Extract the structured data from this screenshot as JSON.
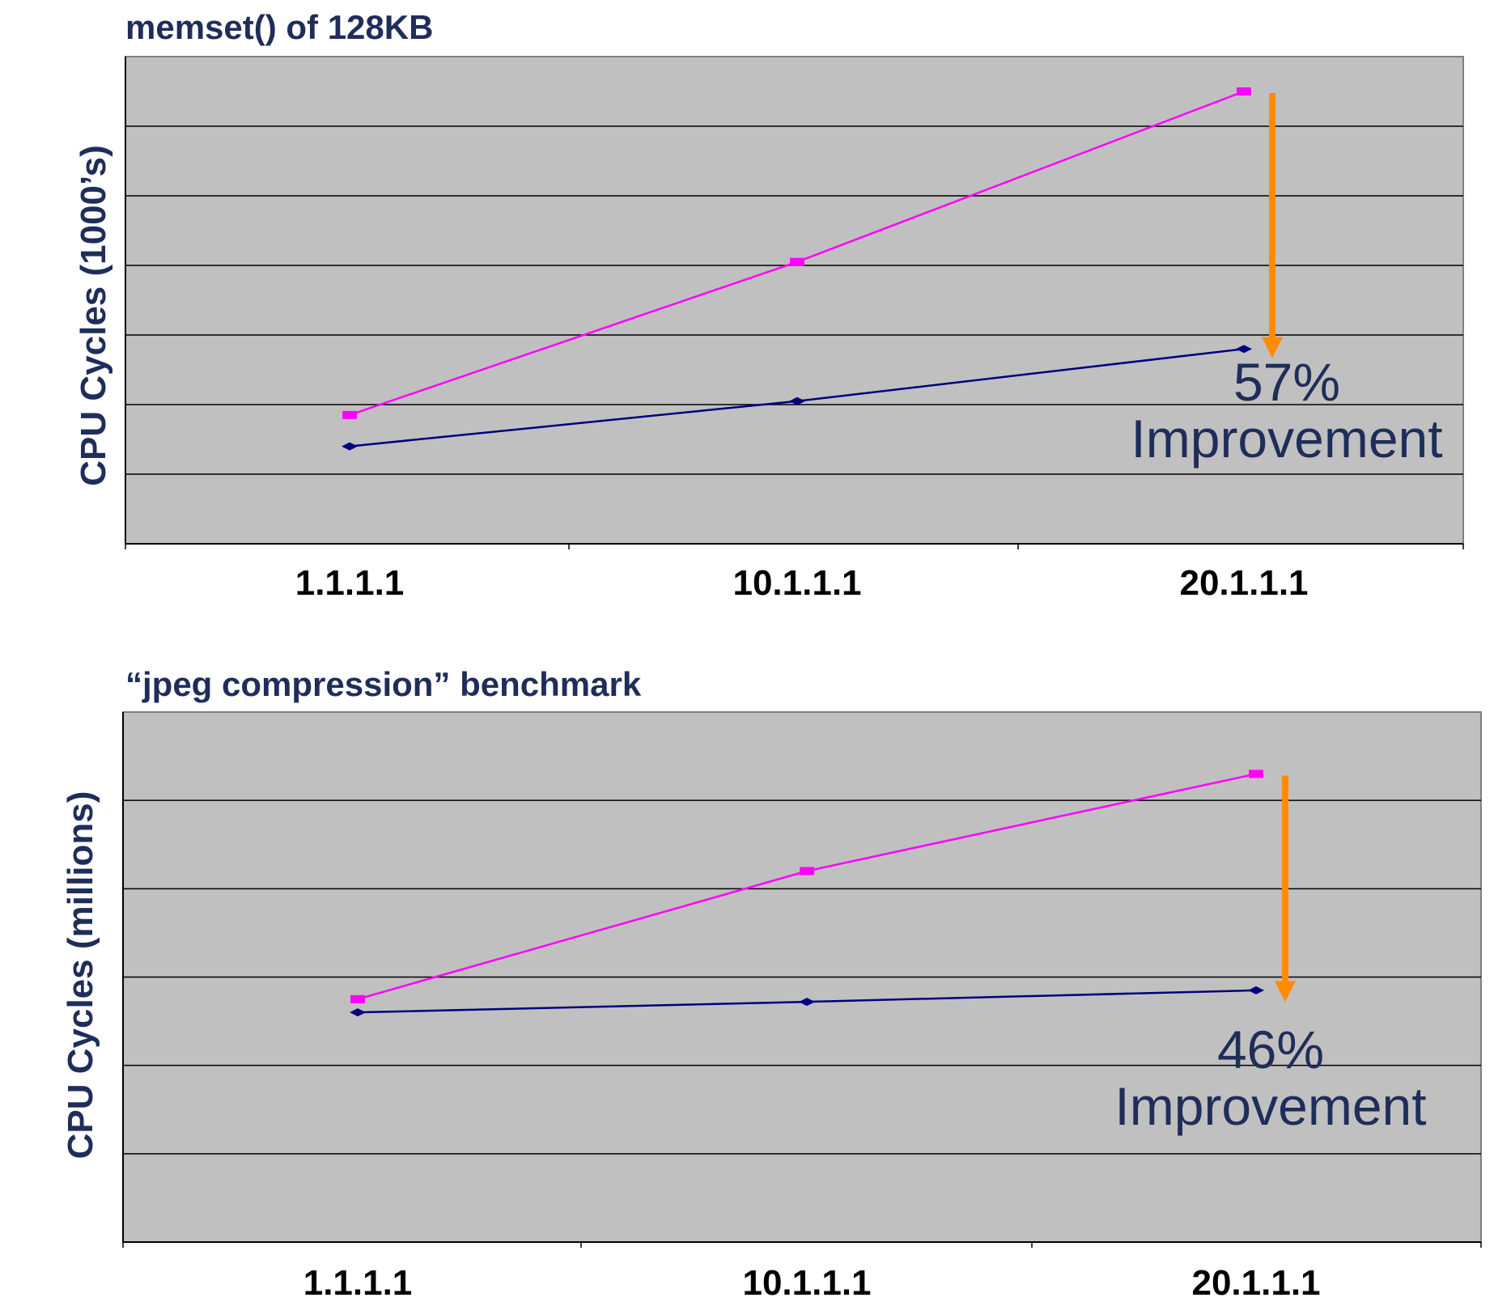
{
  "colors": {
    "plot_bg": "#c0c0c0",
    "grid": "#000000",
    "series_before": "#ff00ff",
    "series_after": "#000080",
    "arrow": "#ff8c00",
    "title_text": "#1f2d5a"
  },
  "chart_data": [
    {
      "type": "line",
      "title": "memset() of 128KB",
      "ylabel": "CPU Cycles (1000’s)",
      "xlabel": "",
      "categories": [
        "1.1.1.1",
        "10.1.1.1",
        "20.1.1.1"
      ],
      "ylim": [
        0,
        7
      ],
      "grid": true,
      "legend": "none",
      "series": [
        {
          "values": [
            1.85,
            4.05,
            6.5
          ],
          "marker": "square",
          "color": "#ff00ff"
        },
        {
          "values": [
            1.4,
            2.05,
            2.8
          ],
          "marker": "diamond",
          "color": "#000080"
        }
      ],
      "annotation": {
        "line1": "57%",
        "line2": "Improvement",
        "from": 6.5,
        "to": 2.9
      }
    },
    {
      "type": "line",
      "title": "“jpeg compression” benchmark",
      "ylabel": "CPU Cycles (millions)",
      "xlabel": "",
      "categories": [
        "1.1.1.1",
        "10.1.1.1",
        "20.1.1.1"
      ],
      "ylim": [
        0,
        6
      ],
      "grid": true,
      "legend": "none",
      "series": [
        {
          "values": [
            2.75,
            4.2,
            5.3
          ],
          "marker": "square",
          "color": "#ff00ff"
        },
        {
          "values": [
            2.6,
            2.72,
            2.85
          ],
          "marker": "diamond",
          "color": "#000080"
        }
      ],
      "annotation": {
        "line1": "46%",
        "line2": "Improvement",
        "from": 5.3,
        "to": 2.9
      }
    }
  ]
}
